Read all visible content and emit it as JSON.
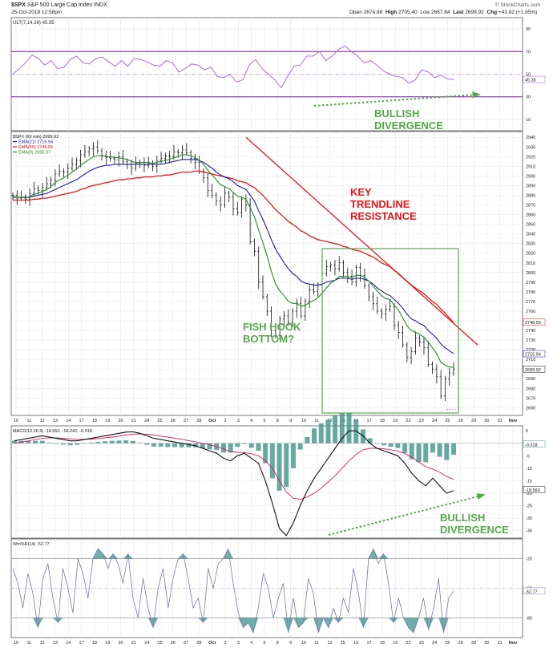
{
  "header": {
    "symbol": "$SPX",
    "name": "S&P 500 Large Cap Index",
    "exchange": "INDX",
    "date": "25-Oct-2018 12:58pm",
    "watermark": "© StockCharts.com",
    "open_label": "Open",
    "open": "2674.88",
    "high_label": "High",
    "high": "2705.40",
    "low_label": "Low",
    "low": "2667.84",
    "last_label": "Last",
    "last": "2699.92",
    "chg_label": "Chg",
    "chg": "+43.82 (+1.65%)"
  },
  "colors": {
    "price": "#111111",
    "ema21": "#1a1aa0",
    "ema50": "#e01414",
    "ema9": "#228b22",
    "ult": "#a45ad8",
    "ult_band": "#7a10a8",
    "hist": "#4a9a92",
    "trendline": "#e8141b",
    "annot_green": "#56a84a",
    "box": "#56a84a",
    "grid": "#e2e2e2",
    "frame": "#555555"
  },
  "chart_data": [
    {
      "panel": "ult",
      "type": "line",
      "legend": "ULT(7,14,28) 45.35",
      "y_ticks": [
        "90",
        "70",
        "50",
        "30",
        "10"
      ],
      "ylim": [
        0,
        100
      ],
      "last_value": "45.35",
      "bands": [
        70,
        30
      ],
      "midline": 50,
      "values": [
        50,
        55,
        60,
        67,
        64,
        58,
        62,
        55,
        56,
        63,
        66,
        60,
        59,
        64,
        65,
        61,
        57,
        62,
        57,
        64,
        63,
        61,
        58,
        57,
        62,
        60,
        52,
        55,
        59,
        58,
        54,
        56,
        48,
        47,
        50,
        43,
        45,
        58,
        63,
        55,
        50,
        45,
        38,
        48,
        57,
        58,
        66,
        66,
        70,
        62,
        66,
        72,
        75,
        70,
        66,
        60,
        62,
        58,
        53,
        50,
        48,
        47,
        42,
        45,
        54,
        52,
        47,
        49,
        46,
        45
      ]
    },
    {
      "panel": "price",
      "type": "ohlc",
      "legend": [
        "$SPX (60 min) 2699.92",
        "EMA(21) 2715.94",
        "EMA(50) 2748.55",
        "EMA(9) 2695.37"
      ],
      "y_ticks": [
        "2940",
        "2930",
        "2920",
        "2910",
        "2900",
        "2890",
        "2880",
        "2870",
        "2860",
        "2850",
        "2840",
        "2830",
        "2820",
        "2810",
        "2800",
        "2790",
        "2780",
        "2770",
        "2760",
        "2750",
        "2740",
        "2730",
        "2720",
        "2710",
        "2700",
        "2690",
        "2680",
        "2670",
        "2660"
      ],
      "ylim": [
        2652,
        2946
      ],
      "last_labels": [
        "2748.55",
        "2715.94",
        "2699.92"
      ],
      "x_ticks": [
        "10",
        "11",
        "12",
        "13",
        "14",
        "17",
        "18",
        "19",
        "20",
        "21",
        "24",
        "25",
        "26",
        "27",
        "28",
        "Oct",
        "2",
        "3",
        "4",
        "5",
        "8",
        "9",
        "10",
        "11",
        "12",
        "15",
        "16",
        "17",
        "18",
        "19",
        "22",
        "23",
        "24",
        "25",
        "26",
        "29",
        "30",
        "31",
        "Nov"
      ],
      "closes": [
        2880,
        2877,
        2878,
        2876,
        2882,
        2887,
        2885,
        2888,
        2892,
        2896,
        2902,
        2905,
        2904,
        2908,
        2912,
        2916,
        2922,
        2925,
        2928,
        2930,
        2926,
        2921,
        2919,
        2918,
        2917,
        2920,
        2915,
        2912,
        2908,
        2913,
        2914,
        2911,
        2913,
        2910,
        2916,
        2918,
        2921,
        2920,
        2925,
        2924,
        2927,
        2924,
        2918,
        2914,
        2905,
        2898,
        2885,
        2880,
        2874,
        2870,
        2882,
        2878,
        2866,
        2862,
        2876,
        2870,
        2832,
        2822,
        2790,
        2775,
        2760,
        2740,
        2735,
        2752,
        2755,
        2748,
        2760,
        2768,
        2755,
        2770,
        2782,
        2780,
        2787,
        2799,
        2806,
        2808,
        2804,
        2810,
        2800,
        2796,
        2790,
        2805,
        2797,
        2786,
        2775,
        2768,
        2760,
        2757,
        2762,
        2765,
        2745,
        2738,
        2725,
        2712,
        2718,
        2732,
        2728,
        2722,
        2705,
        2700,
        2692,
        2672,
        2690,
        2696,
        2700
      ],
      "ema9": [
        2879,
        2878,
        2878,
        2877,
        2879,
        2881,
        2882,
        2884,
        2886,
        2889,
        2893,
        2896,
        2898,
        2901,
        2904,
        2907,
        2911,
        2914,
        2917,
        2920,
        2921,
        2921,
        2920,
        2920,
        2919,
        2919,
        2918,
        2917,
        2915,
        2914,
        2914,
        2914,
        2914,
        2913,
        2914,
        2915,
        2916,
        2917,
        2919,
        2920,
        2922,
        2922,
        2921,
        2919,
        2916,
        2912,
        2906,
        2901,
        2896,
        2891,
        2889,
        2887,
        2883,
        2879,
        2878,
        2876,
        2867,
        2858,
        2844,
        2831,
        2817,
        2801,
        2788,
        2781,
        2776,
        2770,
        2768,
        2768,
        2765,
        2766,
        2769,
        2771,
        2774,
        2779,
        2784,
        2789,
        2792,
        2796,
        2796,
        2796,
        2795,
        2797,
        2797,
        2795,
        2791,
        2786,
        2781,
        2776,
        2773,
        2772,
        2766,
        2761,
        2753,
        2745,
        2740,
        2738,
        2736,
        2733,
        2728,
        2722,
        2716,
        2707,
        2704,
        2702,
        2702
      ],
      "ema21": [
        2878,
        2878,
        2878,
        2878,
        2878,
        2879,
        2880,
        2881,
        2882,
        2884,
        2886,
        2888,
        2890,
        2892,
        2894,
        2896,
        2899,
        2902,
        2905,
        2907,
        2909,
        2910,
        2911,
        2911,
        2912,
        2912,
        2912,
        2912,
        2912,
        2912,
        2912,
        2912,
        2912,
        2912,
        2912,
        2912,
        2913,
        2914,
        2915,
        2916,
        2917,
        2917,
        2917,
        2917,
        2916,
        2914,
        2911,
        2908,
        2904,
        2901,
        2899,
        2897,
        2894,
        2890,
        2888,
        2886,
        2880,
        2874,
        2864,
        2855,
        2845,
        2834,
        2824,
        2817,
        2810,
        2804,
        2799,
        2796,
        2791,
        2789,
        2788,
        2787,
        2787,
        2788,
        2790,
        2791,
        2792,
        2794,
        2794,
        2794,
        2793,
        2794,
        2794,
        2793,
        2791,
        2788,
        2784,
        2781,
        2778,
        2776,
        2772,
        2768,
        2763,
        2757,
        2752,
        2750,
        2747,
        2745,
        2740,
        2736,
        2732,
        2726,
        2722,
        2719,
        2716
      ],
      "ema50": [
        2875,
        2875,
        2875,
        2875,
        2875,
        2876,
        2876,
        2877,
        2877,
        2878,
        2879,
        2880,
        2881,
        2882,
        2883,
        2884,
        2886,
        2887,
        2889,
        2890,
        2891,
        2892,
        2893,
        2894,
        2895,
        2896,
        2896,
        2897,
        2897,
        2898,
        2898,
        2899,
        2899,
        2899,
        2900,
        2900,
        2901,
        2901,
        2902,
        2903,
        2904,
        2904,
        2904,
        2905,
        2905,
        2904,
        2903,
        2902,
        2901,
        2900,
        2899,
        2898,
        2897,
        2895,
        2894,
        2893,
        2890,
        2888,
        2884,
        2880,
        2875,
        2870,
        2865,
        2861,
        2857,
        2853,
        2850,
        2847,
        2843,
        2841,
        2838,
        2836,
        2834,
        2833,
        2832,
        2831,
        2830,
        2829,
        2827,
        2826,
        2824,
        2823,
        2822,
        2820,
        2818,
        2816,
        2813,
        2810,
        2808,
        2806,
        2802,
        2799,
        2795,
        2791,
        2787,
        2784,
        2781,
        2778,
        2774,
        2770,
        2767,
        2762,
        2758,
        2753,
        2748
      ]
    },
    {
      "panel": "macd",
      "type": "line",
      "legend": "MACD(12,26,9) -18.560, -18.242, -0.318",
      "y_ticks": [
        "5",
        "0",
        "-5",
        "-10",
        "-15",
        "-20",
        "-25",
        "-30",
        "-35"
      ],
      "ylim": [
        -38,
        7
      ],
      "last_labels": [
        "-0.318",
        "-18.560"
      ],
      "macd": [
        1,
        1.5,
        2,
        2.5,
        3,
        2.5,
        2,
        1.5,
        1,
        1,
        1.5,
        2,
        2.5,
        3,
        3.5,
        4,
        4.5,
        4.6,
        4,
        3,
        2,
        1.5,
        1,
        0.5,
        0,
        -0.5,
        -1,
        -2,
        -3,
        -4,
        -6,
        -7,
        -5,
        -4,
        -6,
        -8,
        -15,
        -24,
        -34,
        -37,
        -32,
        -25,
        -19,
        -14,
        -10,
        -6,
        -2,
        2,
        5,
        5,
        3,
        0,
        -2,
        -3,
        -4,
        -5,
        -8,
        -12,
        -15,
        -17,
        -14,
        -17,
        -20,
        -19
      ],
      "signal": [
        0,
        0.5,
        1,
        1.5,
        2,
        2.2,
        2.2,
        2,
        1.8,
        1.6,
        1.6,
        1.7,
        1.9,
        2.2,
        2.5,
        2.9,
        3.3,
        3.7,
        3.8,
        3.6,
        3.3,
        2.9,
        2.5,
        2,
        1.6,
        1.1,
        0.6,
        0,
        -0.6,
        -1.3,
        -2.3,
        -3.3,
        -3.6,
        -3.7,
        -4.2,
        -5,
        -7,
        -10,
        -15,
        -19.5,
        -22,
        -22.5,
        -21.5,
        -20,
        -18,
        -15.5,
        -13,
        -10,
        -7,
        -4.5,
        -2.6,
        -2,
        -2,
        -2.2,
        -2.6,
        -3.1,
        -4.1,
        -5.6,
        -7.5,
        -9.4,
        -10.3,
        -11.6,
        -13.3,
        -14.4
      ],
      "histogram": [
        1,
        1,
        1,
        1,
        1,
        0.3,
        -0.2,
        -0.5,
        -0.8,
        -0.6,
        -0.1,
        0.3,
        0.6,
        0.8,
        1,
        1.1,
        1.2,
        0.9,
        0.2,
        -0.6,
        -1.3,
        -1.4,
        -1.5,
        -1.5,
        -1.6,
        -1.6,
        -1.6,
        -2,
        -2.4,
        -2.7,
        -3.7,
        -3.7,
        -1.4,
        -0.3,
        -1.8,
        -3,
        -8,
        -14,
        -19,
        -17.5,
        -10,
        -2.5,
        2.5,
        6,
        8,
        9.5,
        11,
        12,
        12,
        9.5,
        5.6,
        2,
        0,
        -0.8,
        -1.4,
        -1.9,
        -3.9,
        -6.4,
        -7.5,
        -7.6,
        -3.7,
        -5.4,
        -6.7,
        -4.6
      ]
    },
    {
      "panel": "williams",
      "type": "line",
      "legend": "Wm%R(14) -52.77",
      "y_ticks": [
        "-20",
        "-50",
        "-80"
      ],
      "ylim": [
        -100,
        0
      ],
      "bands": [
        -20,
        -80
      ],
      "last_value": "-52.77",
      "values": [
        -30,
        -45,
        -70,
        -35,
        -55,
        -90,
        -40,
        -25,
        -60,
        -85,
        -30,
        -50,
        -75,
        -20,
        -35,
        -60,
        -20,
        -10,
        -15,
        -30,
        -15,
        -25,
        -45,
        -15,
        -60,
        -80,
        -40,
        -70,
        -90,
        -50,
        -30,
        -70,
        -40,
        -20,
        -15,
        -40,
        -70,
        -60,
        -85,
        -30,
        -50,
        -25,
        -20,
        -10,
        -45,
        -75,
        -90,
        -85,
        -95,
        -70,
        -35,
        -50,
        -80,
        -60,
        -45,
        -95,
        -60,
        -90,
        -85,
        -40,
        -55,
        -95,
        -80,
        -90,
        -70,
        -85,
        -60,
        -75,
        -30,
        -55,
        -90,
        -20,
        -10,
        -25,
        -15,
        -45,
        -85,
        -60,
        -80,
        -90,
        -95,
        -80,
        -60,
        -92,
        -70,
        -40,
        -95,
        -60,
        -53
      ]
    }
  ],
  "annotations": {
    "bullish_div_top": "BULLISH\nDIVERGENCE",
    "key_trendline": "KEY\nTRENDLINE\nRESISTANCE",
    "fish_hook": "FISH HOOK\nBOTTOM?",
    "bullish_div_bottom": "BULLISH\nDIVERGENCE"
  }
}
